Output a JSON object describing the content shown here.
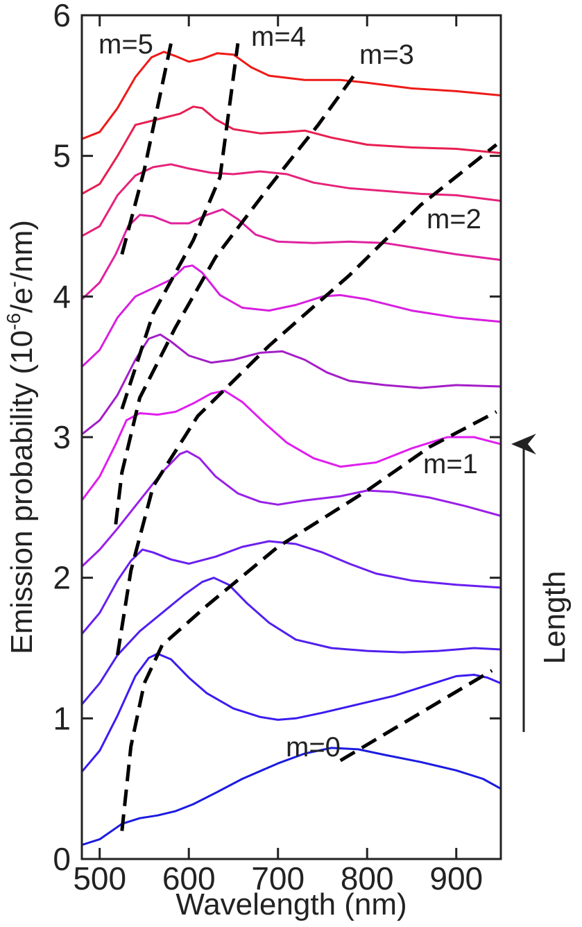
{
  "chart_data": {
    "type": "line",
    "xlabel": "Wavelength (nm)",
    "ylabel_parts": [
      "Emission probability (10",
      "-6",
      "/e",
      "-",
      "/nm)"
    ],
    "xlim": [
      480,
      950
    ],
    "ylim": [
      0,
      6
    ],
    "x_ticks": [
      500,
      600,
      700,
      800,
      900
    ],
    "y_ticks": [
      0,
      1,
      2,
      3,
      4,
      5,
      6
    ],
    "length_label": "Length",
    "series": [
      {
        "color": "#1b1be0",
        "points": [
          [
            480,
            0.1
          ],
          [
            500,
            0.14
          ],
          [
            525,
            0.25
          ],
          [
            545,
            0.29
          ],
          [
            565,
            0.31
          ],
          [
            585,
            0.34
          ],
          [
            605,
            0.39
          ],
          [
            630,
            0.47
          ],
          [
            660,
            0.57
          ],
          [
            700,
            0.68
          ],
          [
            730,
            0.75
          ],
          [
            760,
            0.79
          ],
          [
            790,
            0.78
          ],
          [
            820,
            0.74
          ],
          [
            860,
            0.69
          ],
          [
            900,
            0.63
          ],
          [
            930,
            0.57
          ],
          [
            950,
            0.5
          ]
        ]
      },
      {
        "color": "#3a1cf0",
        "points": [
          [
            480,
            0.62
          ],
          [
            500,
            0.77
          ],
          [
            520,
            1.02
          ],
          [
            540,
            1.3
          ],
          [
            555,
            1.43
          ],
          [
            565,
            1.46
          ],
          [
            580,
            1.42
          ],
          [
            600,
            1.29
          ],
          [
            620,
            1.18
          ],
          [
            650,
            1.07
          ],
          [
            680,
            1.01
          ],
          [
            700,
            0.99
          ],
          [
            720,
            1.0
          ],
          [
            750,
            1.04
          ],
          [
            790,
            1.1
          ],
          [
            830,
            1.16
          ],
          [
            870,
            1.24
          ],
          [
            900,
            1.3
          ],
          [
            920,
            1.31
          ],
          [
            935,
            1.29
          ],
          [
            950,
            1.25
          ]
        ]
      },
      {
        "color": "#5020ee",
        "points": [
          [
            480,
            1.1
          ],
          [
            500,
            1.25
          ],
          [
            520,
            1.45
          ],
          [
            545,
            1.62
          ],
          [
            570,
            1.75
          ],
          [
            595,
            1.88
          ],
          [
            615,
            1.97
          ],
          [
            628,
            2.0
          ],
          [
            645,
            1.95
          ],
          [
            665,
            1.82
          ],
          [
            690,
            1.68
          ],
          [
            720,
            1.56
          ],
          [
            760,
            1.5
          ],
          [
            800,
            1.48
          ],
          [
            840,
            1.47
          ],
          [
            880,
            1.48
          ],
          [
            920,
            1.5
          ],
          [
            950,
            1.49
          ]
        ]
      },
      {
        "color": "#6a1ef0",
        "points": [
          [
            480,
            1.6
          ],
          [
            500,
            1.75
          ],
          [
            520,
            1.98
          ],
          [
            535,
            2.12
          ],
          [
            548,
            2.2
          ],
          [
            560,
            2.18
          ],
          [
            580,
            2.13
          ],
          [
            600,
            2.1
          ],
          [
            630,
            2.15
          ],
          [
            660,
            2.22
          ],
          [
            690,
            2.26
          ],
          [
            720,
            2.24
          ],
          [
            750,
            2.18
          ],
          [
            780,
            2.1
          ],
          [
            810,
            2.03
          ],
          [
            850,
            1.98
          ],
          [
            900,
            1.95
          ],
          [
            950,
            1.93
          ]
        ]
      },
      {
        "color": "#9a20e8",
        "points": [
          [
            480,
            2.08
          ],
          [
            500,
            2.2
          ],
          [
            520,
            2.35
          ],
          [
            545,
            2.55
          ],
          [
            570,
            2.75
          ],
          [
            590,
            2.88
          ],
          [
            598,
            2.9
          ],
          [
            612,
            2.85
          ],
          [
            630,
            2.72
          ],
          [
            655,
            2.6
          ],
          [
            680,
            2.54
          ],
          [
            700,
            2.52
          ],
          [
            730,
            2.55
          ],
          [
            770,
            2.58
          ],
          [
            800,
            2.62
          ],
          [
            830,
            2.61
          ],
          [
            870,
            2.57
          ],
          [
            910,
            2.51
          ],
          [
            950,
            2.44
          ]
        ]
      },
      {
        "color": "#e01ef0",
        "points": [
          [
            480,
            2.55
          ],
          [
            500,
            2.72
          ],
          [
            518,
            2.95
          ],
          [
            530,
            3.12
          ],
          [
            545,
            3.17
          ],
          [
            565,
            3.16
          ],
          [
            585,
            3.18
          ],
          [
            605,
            3.24
          ],
          [
            625,
            3.31
          ],
          [
            640,
            3.33
          ],
          [
            660,
            3.25
          ],
          [
            685,
            3.1
          ],
          [
            710,
            2.96
          ],
          [
            740,
            2.85
          ],
          [
            770,
            2.79
          ],
          [
            810,
            2.82
          ],
          [
            850,
            2.92
          ],
          [
            890,
            3.0
          ],
          [
            920,
            3.0
          ],
          [
            950,
            2.95
          ]
        ]
      },
      {
        "color": "#a41ec8",
        "points": [
          [
            480,
            3.02
          ],
          [
            500,
            3.12
          ],
          [
            520,
            3.3
          ],
          [
            540,
            3.55
          ],
          [
            555,
            3.7
          ],
          [
            568,
            3.73
          ],
          [
            580,
            3.68
          ],
          [
            600,
            3.58
          ],
          [
            625,
            3.53
          ],
          [
            650,
            3.55
          ],
          [
            680,
            3.6
          ],
          [
            705,
            3.61
          ],
          [
            730,
            3.55
          ],
          [
            755,
            3.46
          ],
          [
            780,
            3.4
          ],
          [
            820,
            3.37
          ],
          [
            860,
            3.35
          ],
          [
            900,
            3.37
          ],
          [
            950,
            3.36
          ]
        ]
      },
      {
        "color": "#d81ee0",
        "points": [
          [
            480,
            3.5
          ],
          [
            500,
            3.62
          ],
          [
            520,
            3.85
          ],
          [
            540,
            4.0
          ],
          [
            560,
            4.06
          ],
          [
            580,
            4.12
          ],
          [
            595,
            4.21
          ],
          [
            604,
            4.22
          ],
          [
            615,
            4.17
          ],
          [
            635,
            4.01
          ],
          [
            660,
            3.92
          ],
          [
            690,
            3.9
          ],
          [
            720,
            3.94
          ],
          [
            750,
            4.0
          ],
          [
            770,
            4.01
          ],
          [
            800,
            3.98
          ],
          [
            850,
            3.9
          ],
          [
            900,
            3.85
          ],
          [
            950,
            3.82
          ]
        ]
      },
      {
        "color": "#e0229e",
        "points": [
          [
            480,
            3.98
          ],
          [
            500,
            4.1
          ],
          [
            518,
            4.3
          ],
          [
            532,
            4.5
          ],
          [
            545,
            4.58
          ],
          [
            560,
            4.57
          ],
          [
            580,
            4.52
          ],
          [
            600,
            4.52
          ],
          [
            620,
            4.58
          ],
          [
            638,
            4.62
          ],
          [
            655,
            4.55
          ],
          [
            675,
            4.44
          ],
          [
            700,
            4.39
          ],
          [
            740,
            4.38
          ],
          [
            780,
            4.39
          ],
          [
            820,
            4.38
          ],
          [
            860,
            4.34
          ],
          [
            900,
            4.3
          ],
          [
            950,
            4.26
          ]
        ]
      },
      {
        "color": "#e6227a",
        "points": [
          [
            480,
            4.43
          ],
          [
            500,
            4.5
          ],
          [
            520,
            4.72
          ],
          [
            540,
            4.86
          ],
          [
            560,
            4.92
          ],
          [
            580,
            4.94
          ],
          [
            600,
            4.91
          ],
          [
            625,
            4.88
          ],
          [
            650,
            4.87
          ],
          [
            680,
            4.89
          ],
          [
            710,
            4.87
          ],
          [
            740,
            4.81
          ],
          [
            780,
            4.77
          ],
          [
            820,
            4.75
          ],
          [
            860,
            4.73
          ],
          [
            900,
            4.72
          ],
          [
            950,
            4.68
          ]
        ]
      },
      {
        "color": "#e81e50",
        "points": [
          [
            480,
            4.73
          ],
          [
            500,
            4.8
          ],
          [
            520,
            5.0
          ],
          [
            540,
            5.22
          ],
          [
            565,
            5.26
          ],
          [
            590,
            5.3
          ],
          [
            605,
            5.35
          ],
          [
            615,
            5.34
          ],
          [
            630,
            5.26
          ],
          [
            650,
            5.19
          ],
          [
            680,
            5.16
          ],
          [
            710,
            5.17
          ],
          [
            730,
            5.18
          ],
          [
            760,
            5.13
          ],
          [
            800,
            5.08
          ],
          [
            850,
            5.06
          ],
          [
            900,
            5.05
          ],
          [
            950,
            5.02
          ]
        ]
      },
      {
        "color": "#ee1a18",
        "points": [
          [
            480,
            5.12
          ],
          [
            500,
            5.17
          ],
          [
            520,
            5.34
          ],
          [
            540,
            5.56
          ],
          [
            558,
            5.7
          ],
          [
            572,
            5.74
          ],
          [
            585,
            5.71
          ],
          [
            600,
            5.67
          ],
          [
            615,
            5.69
          ],
          [
            632,
            5.73
          ],
          [
            650,
            5.72
          ],
          [
            670,
            5.63
          ],
          [
            690,
            5.57
          ],
          [
            730,
            5.54
          ],
          [
            770,
            5.54
          ],
          [
            800,
            5.52
          ],
          [
            850,
            5.48
          ],
          [
            900,
            5.46
          ],
          [
            950,
            5.43
          ]
        ]
      }
    ],
    "dashed_lines": [
      {
        "label": "m=0",
        "points": [
          [
            770,
            0.7
          ],
          [
            940,
            1.34
          ]
        ]
      },
      {
        "label": "m=1",
        "points": [
          [
            525,
            0.2
          ],
          [
            535,
            0.8
          ],
          [
            550,
            1.25
          ],
          [
            570,
            1.52
          ],
          [
            620,
            1.8
          ],
          [
            700,
            2.22
          ],
          [
            800,
            2.62
          ],
          [
            870,
            2.93
          ],
          [
            945,
            3.18
          ]
        ]
      },
      {
        "label": "m=2",
        "points": [
          [
            520,
            1.45
          ],
          [
            535,
            2.05
          ],
          [
            560,
            2.65
          ],
          [
            610,
            3.15
          ],
          [
            690,
            3.65
          ],
          [
            780,
            4.15
          ],
          [
            860,
            4.65
          ],
          [
            945,
            5.08
          ]
        ]
      },
      {
        "label": "m=3",
        "points": [
          [
            518,
            2.38
          ],
          [
            525,
            2.75
          ],
          [
            545,
            3.28
          ],
          [
            585,
            3.78
          ],
          [
            630,
            4.28
          ],
          [
            690,
            4.78
          ],
          [
            745,
            5.22
          ],
          [
            785,
            5.57
          ]
        ]
      },
      {
        "label": "m=4",
        "points": [
          [
            525,
            3.2
          ],
          [
            560,
            3.88
          ],
          [
            605,
            4.4
          ],
          [
            635,
            4.85
          ],
          [
            655,
            5.8
          ]
        ]
      },
      {
        "label": "m=5",
        "points": [
          [
            525,
            4.3
          ],
          [
            550,
            4.9
          ],
          [
            580,
            5.8
          ]
        ]
      }
    ],
    "mode_labels": [
      "m=5",
      "m=4",
      "m=3",
      "m=2",
      "m=1",
      "m=0"
    ]
  }
}
